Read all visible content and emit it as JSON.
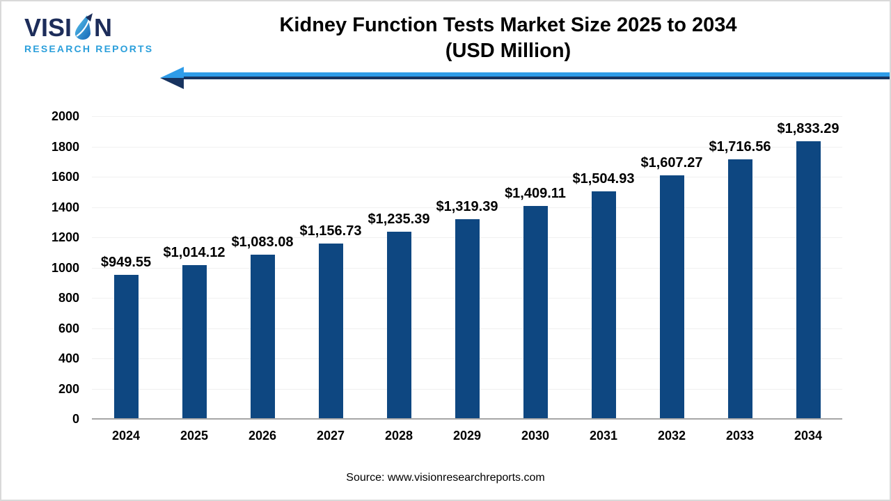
{
  "logo": {
    "word_prefix": "VISI",
    "word_suffix": "N",
    "subtitle": "RESEARCH REPORTS",
    "navy_color": "#1d2d5a",
    "blue_color": "#2b9fdb"
  },
  "header": {
    "title_line1": "Kidney Function Tests Market Size 2025 to 2034",
    "title_line2": "(USD Million)"
  },
  "arrow": {
    "light_color": "#2e9ce9",
    "dark_color": "#17335f"
  },
  "chart_data": {
    "type": "bar",
    "title": "Kidney Function Tests Market Size 2025 to 2034 (USD Million)",
    "categories": [
      "2024",
      "2025",
      "2026",
      "2027",
      "2028",
      "2029",
      "2030",
      "2031",
      "2032",
      "2033",
      "2034"
    ],
    "values": [
      949.55,
      1014.12,
      1083.08,
      1156.73,
      1235.39,
      1319.39,
      1409.11,
      1504.93,
      1607.27,
      1716.56,
      1833.29
    ],
    "value_labels": [
      "$949.55",
      "$1,014.12",
      "$1,083.08",
      "$1,156.73",
      "$1,235.39",
      "$1,319.39",
      "$1,409.11",
      "$1,504.93",
      "$1,607.27",
      "$1,716.56",
      "$1,833.29"
    ],
    "xlabel": "",
    "ylabel": "",
    "ylim": [
      0,
      2000
    ],
    "yticks": [
      0,
      200,
      400,
      600,
      800,
      1000,
      1200,
      1400,
      1600,
      1800,
      2000
    ],
    "grid": true,
    "legend": false,
    "bar_color": "#0e4781",
    "gridline_color": "#f0f0f0",
    "axis_line_color": "#a6a6a6"
  },
  "footer": {
    "source": "Source: www.visionresearchreports.com"
  }
}
